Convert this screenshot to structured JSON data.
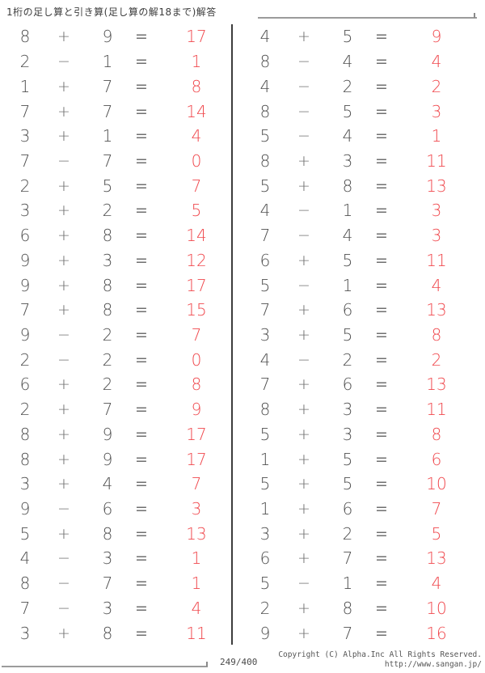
{
  "title": "1桁の足し算と引き算(足し算の解18まで)解答",
  "equals": "=",
  "page_indicator": "249/400",
  "footer": {
    "copyright": "Copyright (C) Alpha.Inc All Rights Reserved.",
    "url": "http://www.sangan.jp/"
  },
  "colors": {
    "answer_red": "#f0484d",
    "problem_text": "#4f4f4f",
    "operator_gray": "#6f6f6f",
    "rule_gray": "#9b9b9b",
    "divider_dark": "#3d3d3d"
  },
  "problems": {
    "left": [
      {
        "a": "8",
        "op": "+",
        "b": "9",
        "ans": "17"
      },
      {
        "a": "2",
        "op": "−",
        "b": "1",
        "ans": "1"
      },
      {
        "a": "1",
        "op": "+",
        "b": "7",
        "ans": "8"
      },
      {
        "a": "7",
        "op": "+",
        "b": "7",
        "ans": "14"
      },
      {
        "a": "3",
        "op": "+",
        "b": "1",
        "ans": "4"
      },
      {
        "a": "7",
        "op": "−",
        "b": "7",
        "ans": "0"
      },
      {
        "a": "2",
        "op": "+",
        "b": "5",
        "ans": "7"
      },
      {
        "a": "3",
        "op": "+",
        "b": "2",
        "ans": "5"
      },
      {
        "a": "6",
        "op": "+",
        "b": "8",
        "ans": "14"
      },
      {
        "a": "9",
        "op": "+",
        "b": "3",
        "ans": "12"
      },
      {
        "a": "9",
        "op": "+",
        "b": "8",
        "ans": "17"
      },
      {
        "a": "7",
        "op": "+",
        "b": "8",
        "ans": "15"
      },
      {
        "a": "9",
        "op": "−",
        "b": "2",
        "ans": "7"
      },
      {
        "a": "2",
        "op": "−",
        "b": "2",
        "ans": "0"
      },
      {
        "a": "6",
        "op": "+",
        "b": "2",
        "ans": "8"
      },
      {
        "a": "2",
        "op": "+",
        "b": "7",
        "ans": "9"
      },
      {
        "a": "8",
        "op": "+",
        "b": "9",
        "ans": "17"
      },
      {
        "a": "8",
        "op": "+",
        "b": "9",
        "ans": "17"
      },
      {
        "a": "3",
        "op": "+",
        "b": "4",
        "ans": "7"
      },
      {
        "a": "9",
        "op": "−",
        "b": "6",
        "ans": "3"
      },
      {
        "a": "5",
        "op": "+",
        "b": "8",
        "ans": "13"
      },
      {
        "a": "4",
        "op": "−",
        "b": "3",
        "ans": "1"
      },
      {
        "a": "8",
        "op": "−",
        "b": "7",
        "ans": "1"
      },
      {
        "a": "7",
        "op": "−",
        "b": "3",
        "ans": "4"
      },
      {
        "a": "3",
        "op": "+",
        "b": "8",
        "ans": "11"
      }
    ],
    "right": [
      {
        "a": "4",
        "op": "+",
        "b": "5",
        "ans": "9"
      },
      {
        "a": "8",
        "op": "−",
        "b": "4",
        "ans": "4"
      },
      {
        "a": "4",
        "op": "−",
        "b": "2",
        "ans": "2"
      },
      {
        "a": "8",
        "op": "−",
        "b": "5",
        "ans": "3"
      },
      {
        "a": "5",
        "op": "−",
        "b": "4",
        "ans": "1"
      },
      {
        "a": "8",
        "op": "+",
        "b": "3",
        "ans": "11"
      },
      {
        "a": "5",
        "op": "+",
        "b": "8",
        "ans": "13"
      },
      {
        "a": "4",
        "op": "−",
        "b": "1",
        "ans": "3"
      },
      {
        "a": "7",
        "op": "−",
        "b": "4",
        "ans": "3"
      },
      {
        "a": "6",
        "op": "+",
        "b": "5",
        "ans": "11"
      },
      {
        "a": "5",
        "op": "−",
        "b": "1",
        "ans": "4"
      },
      {
        "a": "7",
        "op": "+",
        "b": "6",
        "ans": "13"
      },
      {
        "a": "3",
        "op": "+",
        "b": "5",
        "ans": "8"
      },
      {
        "a": "4",
        "op": "−",
        "b": "2",
        "ans": "2"
      },
      {
        "a": "7",
        "op": "+",
        "b": "6",
        "ans": "13"
      },
      {
        "a": "8",
        "op": "+",
        "b": "3",
        "ans": "11"
      },
      {
        "a": "5",
        "op": "+",
        "b": "3",
        "ans": "8"
      },
      {
        "a": "1",
        "op": "+",
        "b": "5",
        "ans": "6"
      },
      {
        "a": "5",
        "op": "+",
        "b": "5",
        "ans": "10"
      },
      {
        "a": "1",
        "op": "+",
        "b": "6",
        "ans": "7"
      },
      {
        "a": "3",
        "op": "+",
        "b": "2",
        "ans": "5"
      },
      {
        "a": "6",
        "op": "+",
        "b": "7",
        "ans": "13"
      },
      {
        "a": "5",
        "op": "−",
        "b": "1",
        "ans": "4"
      },
      {
        "a": "2",
        "op": "+",
        "b": "8",
        "ans": "10"
      },
      {
        "a": "9",
        "op": "+",
        "b": "7",
        "ans": "16"
      }
    ]
  }
}
